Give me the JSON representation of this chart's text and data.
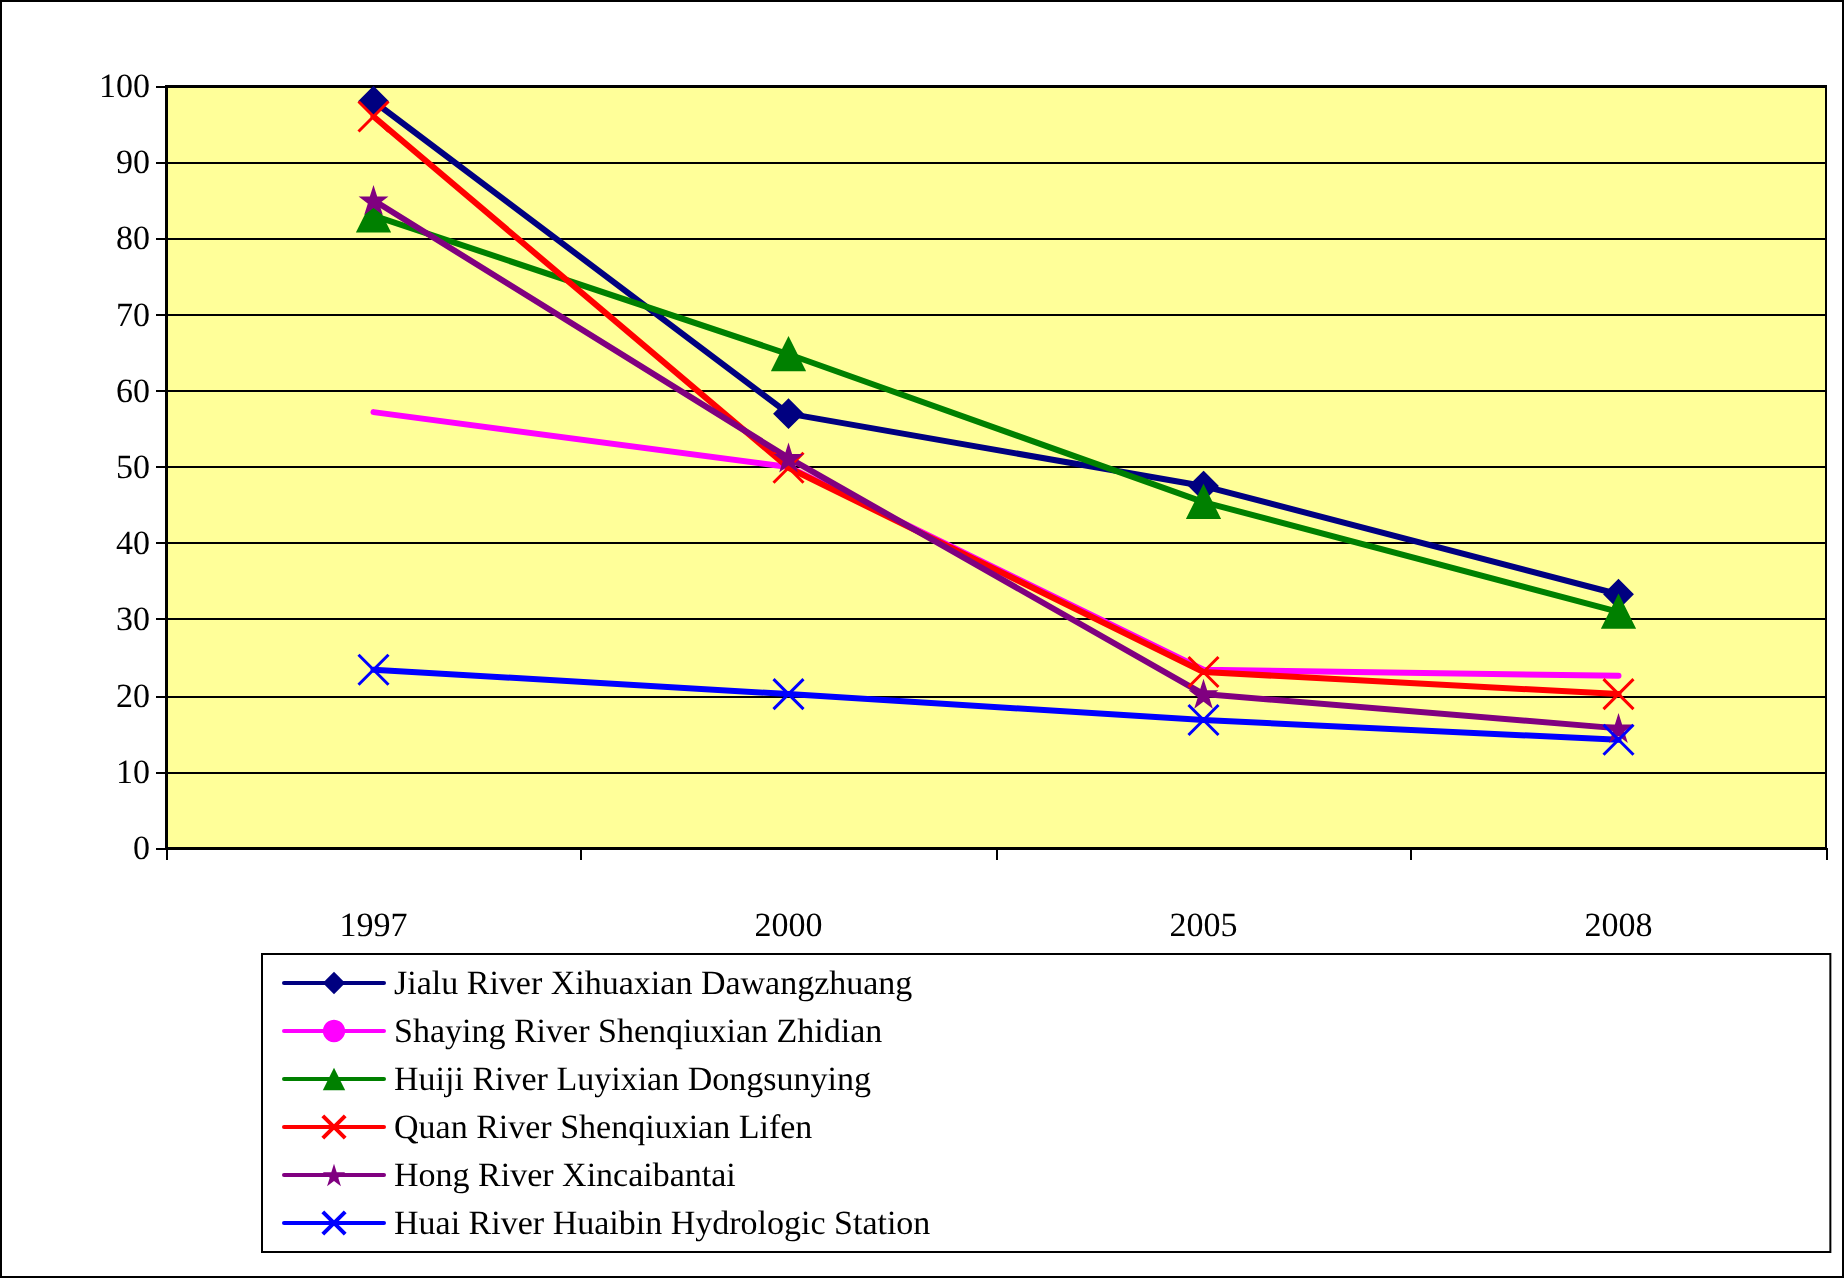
{
  "chart_data": {
    "type": "line",
    "categories": [
      "1997",
      "2000",
      "2005",
      "2008"
    ],
    "ylim": [
      0,
      100
    ],
    "yticks": [
      0,
      10,
      20,
      30,
      40,
      50,
      60,
      70,
      80,
      90,
      100
    ],
    "grid": "y",
    "legend": "bottom",
    "line_style": "solid",
    "series": [
      {
        "name": "Jialu River Xihuaxian Dawangzhuang",
        "color": "#000080",
        "marker": "diamond",
        "values": [
          98,
          57,
          47.5,
          33.3
        ]
      },
      {
        "name": "Shaying River Shenqiuxian Zhidian",
        "color": "#ff00ff",
        "marker": "none",
        "values": [
          57.2,
          50,
          23.4,
          22.6
        ]
      },
      {
        "name": "Huiji River Luyixian Dongsunying",
        "color": "#008000",
        "marker": "triangle",
        "values": [
          83,
          64.8,
          45.4,
          31
        ]
      },
      {
        "name": "Quan River Shenqiuxian Lifen",
        "color": "#ff0000",
        "marker": "cross",
        "values": [
          96,
          49.9,
          23.1,
          20.2
        ]
      },
      {
        "name": "Hong River Xincaibantai",
        "color": "#800080",
        "marker": "star",
        "values": [
          85,
          51.2,
          20.2,
          15.7
        ]
      },
      {
        "name": "Huai River Huaibin Hydrologic Station",
        "color": "#0000ff",
        "marker": "cross",
        "values": [
          23.4,
          20.2,
          16.8,
          14.2
        ]
      }
    ]
  }
}
